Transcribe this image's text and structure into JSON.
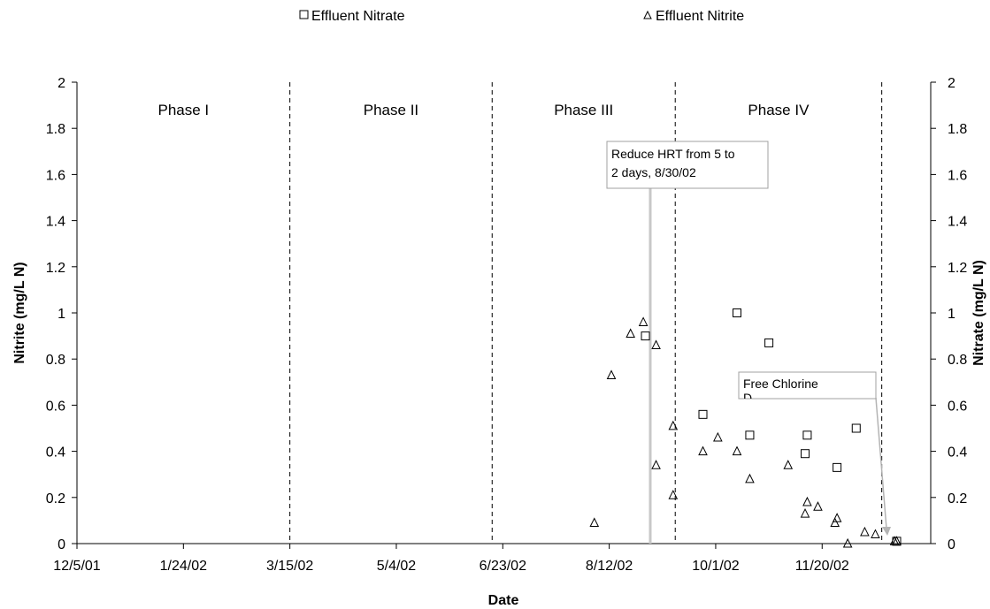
{
  "chart_data": {
    "type": "scatter",
    "xlabel": "Date",
    "ylabel_left": "Nitrite (mg/L N)",
    "ylabel_right": "Nitrate (mg/L N)",
    "x_ticks": [
      "12/5/01",
      "1/24/02",
      "3/15/02",
      "5/4/02",
      "6/23/02",
      "8/12/02",
      "10/1/02",
      "11/20/02"
    ],
    "xlim": [
      "2001-12-05",
      "2003-01-10"
    ],
    "ylim": [
      0,
      2
    ],
    "y_ticks": [
      "0",
      "0.2",
      "0.4",
      "0.6",
      "0.8",
      "1",
      "1.2",
      "1.4",
      "1.6",
      "1.8",
      "2"
    ],
    "grid": false,
    "legend_position": "top",
    "phases": [
      {
        "label": "Phase I",
        "start": "2001-12-05",
        "end": "2002-03-15"
      },
      {
        "label": "Phase II",
        "start": "2002-03-15",
        "end": "2002-06-18"
      },
      {
        "label": "Phase III",
        "start": "2002-06-18",
        "end": "2002-09-12"
      },
      {
        "label": "Phase IV",
        "start": "2002-09-12",
        "end": "2002-12-18"
      }
    ],
    "series": [
      {
        "name": "Effluent Nitrate",
        "marker": "square",
        "axis": "right",
        "points": [
          {
            "x": "2002-08-29",
            "y": 0.9
          },
          {
            "x": "2002-09-25",
            "y": 0.56
          },
          {
            "x": "2002-10-11",
            "y": 1.0
          },
          {
            "x": "2002-10-17",
            "y": 0.47
          },
          {
            "x": "2002-10-26",
            "y": 0.87
          },
          {
            "x": "2002-11-12",
            "y": 0.39
          },
          {
            "x": "2002-11-13",
            "y": 0.47
          },
          {
            "x": "2002-11-27",
            "y": 0.33
          },
          {
            "x": "2002-12-06",
            "y": 0.5
          },
          {
            "x": "2002-12-25",
            "y": 0.01
          }
        ]
      },
      {
        "name": "Effluent Nitrite",
        "marker": "triangle",
        "axis": "left",
        "points": [
          {
            "x": "2002-08-05",
            "y": 0.09
          },
          {
            "x": "2002-08-13",
            "y": 0.73
          },
          {
            "x": "2002-08-22",
            "y": 0.91
          },
          {
            "x": "2002-08-28",
            "y": 0.96
          },
          {
            "x": "2002-09-03",
            "y": 0.86
          },
          {
            "x": "2002-09-03",
            "y": 0.34
          },
          {
            "x": "2002-09-11",
            "y": 0.51
          },
          {
            "x": "2002-09-11",
            "y": 0.21
          },
          {
            "x": "2002-09-25",
            "y": 0.4
          },
          {
            "x": "2002-10-02",
            "y": 0.46
          },
          {
            "x": "2002-10-11",
            "y": 0.4
          },
          {
            "x": "2002-10-17",
            "y": 0.28
          },
          {
            "x": "2002-11-04",
            "y": 0.34
          },
          {
            "x": "2002-11-12",
            "y": 0.13
          },
          {
            "x": "2002-11-13",
            "y": 0.18
          },
          {
            "x": "2002-11-18",
            "y": 0.16
          },
          {
            "x": "2002-11-26",
            "y": 0.09
          },
          {
            "x": "2002-11-27",
            "y": 0.11
          },
          {
            "x": "2002-12-02",
            "y": 0.0
          },
          {
            "x": "2002-12-10",
            "y": 0.05
          },
          {
            "x": "2002-12-15",
            "y": 0.04
          },
          {
            "x": "2002-12-24",
            "y": 0.01
          },
          {
            "x": "2002-12-25",
            "y": 0.01
          }
        ]
      }
    ],
    "annotations": [
      {
        "name": "hrt",
        "lines": [
          "Reduce HRT from 5 to",
          "2 days, 8/30/02"
        ]
      },
      {
        "name": "chlorine",
        "lines": [
          "Free Chlorine",
          "D"
        ]
      }
    ]
  }
}
